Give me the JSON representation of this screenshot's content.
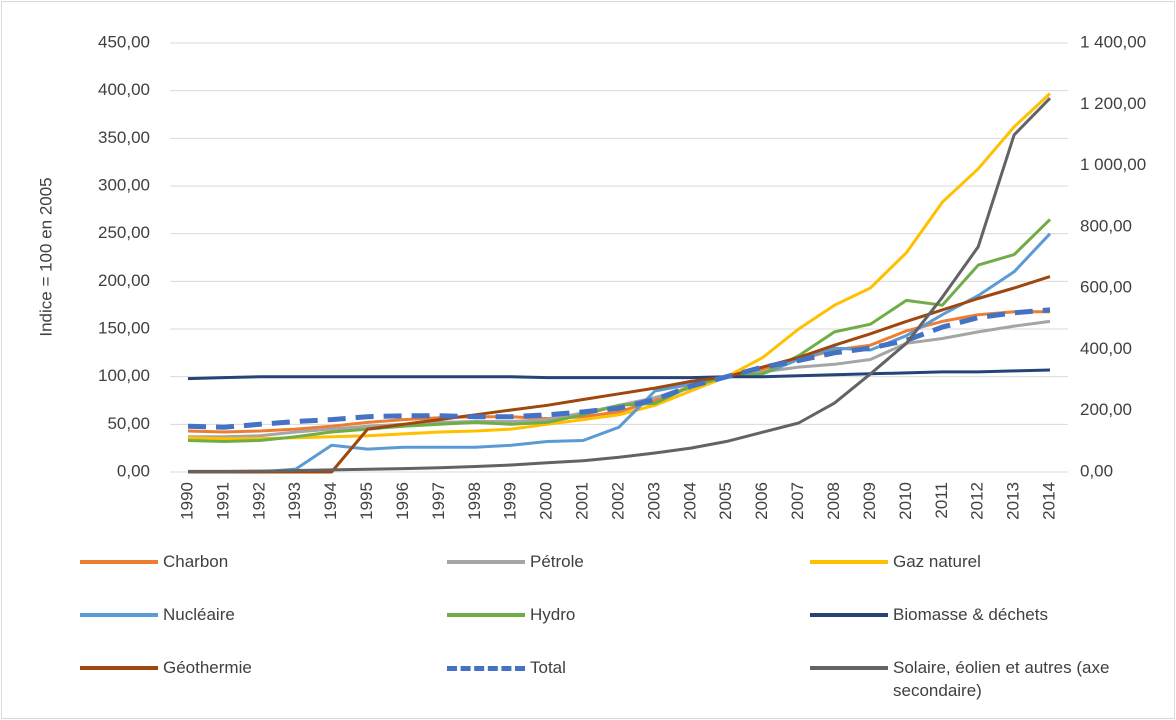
{
  "chart_data": {
    "type": "line",
    "ylabel": "Indice = 100 en 2005",
    "categories": [
      "1990",
      "1991",
      "1992",
      "1993",
      "1994",
      "1995",
      "1996",
      "1997",
      "1998",
      "1999",
      "2000",
      "2001",
      "2002",
      "2003",
      "2004",
      "2005",
      "2006",
      "2007",
      "2008",
      "2009",
      "2010",
      "2011",
      "2012",
      "2013",
      "2014"
    ],
    "ylim": [
      0,
      450
    ],
    "yticks": [
      {
        "value": 0,
        "label": "0,00"
      },
      {
        "value": 50,
        "label": "50,00"
      },
      {
        "value": 100,
        "label": "100,00"
      },
      {
        "value": 150,
        "label": "150,00"
      },
      {
        "value": 200,
        "label": "200,00"
      },
      {
        "value": 250,
        "label": "250,00"
      },
      {
        "value": 300,
        "label": "300,00"
      },
      {
        "value": 350,
        "label": "350,00"
      },
      {
        "value": 400,
        "label": "400,00"
      },
      {
        "value": 450,
        "label": "450,00"
      }
    ],
    "y2lim": [
      0,
      1400
    ],
    "y2ticks": [
      {
        "value": 0,
        "label": "0,00"
      },
      {
        "value": 200,
        "label": "200,00"
      },
      {
        "value": 400,
        "label": "400,00"
      },
      {
        "value": 600,
        "label": "600,00"
      },
      {
        "value": 800,
        "label": "800,00"
      },
      {
        "value": 1000,
        "label": "1 000,00"
      },
      {
        "value": 1200,
        "label": "1 200,00"
      },
      {
        "value": 1400,
        "label": "1 400,00"
      }
    ],
    "grid": true,
    "legend": "bottom",
    "series": [
      {
        "name": "Charbon",
        "color": "#ED7D31",
        "values": [
          43,
          42,
          43,
          45,
          48,
          52,
          55,
          57,
          58,
          58,
          56,
          58,
          63,
          75,
          90,
          100,
          108,
          118,
          128,
          133,
          148,
          158,
          165,
          168,
          168
        ]
      },
      {
        "name": "Pétrole",
        "color": "#A5A5A5",
        "values": [
          37,
          37,
          38,
          42,
          45,
          48,
          50,
          52,
          53,
          53,
          55,
          62,
          70,
          78,
          88,
          100,
          105,
          110,
          113,
          118,
          135,
          140,
          147,
          153,
          158
        ]
      },
      {
        "name": "Gaz naturel",
        "color": "#FFC000",
        "values": [
          36,
          35,
          35,
          36,
          37,
          38,
          40,
          42,
          43,
          45,
          50,
          55,
          60,
          70,
          85,
          100,
          120,
          150,
          175,
          193,
          230,
          283,
          318,
          362,
          397
        ]
      },
      {
        "name": "Nucléaire",
        "color": "#5B9BD5",
        "values": [
          0,
          0,
          0,
          3,
          28,
          24,
          26,
          26,
          26,
          28,
          32,
          33,
          47,
          85,
          92,
          100,
          103,
          118,
          130,
          128,
          143,
          165,
          185,
          210,
          250
        ]
      },
      {
        "name": "Hydro",
        "color": "#70AD47",
        "values": [
          33,
          32,
          33,
          37,
          42,
          45,
          48,
          50,
          52,
          50,
          52,
          60,
          70,
          72,
          90,
          100,
          103,
          122,
          147,
          155,
          180,
          175,
          217,
          228,
          265
        ]
      },
      {
        "name": "Biomasse & déchets",
        "color": "#264478",
        "values": [
          98,
          99,
          100,
          100,
          100,
          100,
          100,
          100,
          100,
          100,
          99,
          99,
          99,
          99,
          99,
          100,
          100,
          101,
          102,
          103,
          104,
          105,
          105,
          106,
          107
        ]
      },
      {
        "name": "Géothermie",
        "color": "#9E480E",
        "values": [
          0,
          0,
          0,
          0,
          0,
          45,
          50,
          55,
          60,
          65,
          70,
          76,
          82,
          88,
          95,
          100,
          110,
          120,
          133,
          145,
          158,
          170,
          182,
          193,
          205
        ]
      },
      {
        "name": "Total",
        "color": "#4472C4",
        "dashed": true,
        "values": [
          48,
          47,
          50,
          53,
          55,
          58,
          59,
          59,
          58,
          58,
          60,
          63,
          67,
          76,
          90,
          100,
          110,
          117,
          125,
          130,
          138,
          152,
          162,
          167,
          170
        ]
      },
      {
        "name": "Solaire, éolien et autres (axe secondaire)",
        "color": "#636363",
        "axis": "y2",
        "values": [
          2,
          2,
          3,
          5,
          7,
          9,
          11,
          14,
          18,
          23,
          30,
          37,
          48,
          62,
          78,
          100,
          130,
          160,
          225,
          320,
          420,
          570,
          735,
          1100,
          1220
        ]
      }
    ]
  }
}
